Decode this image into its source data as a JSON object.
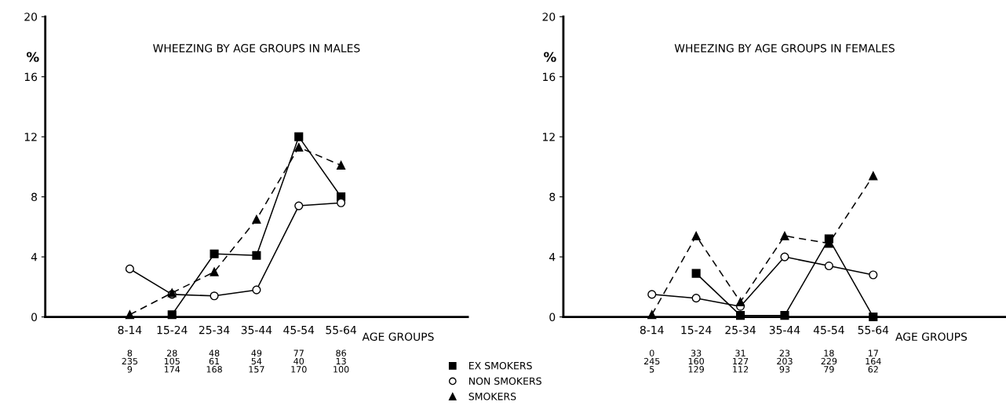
{
  "chart_data": [
    {
      "type": "line",
      "title": "WHEEZING BY AGE GROUPS IN MALES",
      "ylabel": "%",
      "xlabel": "AGE GROUPS",
      "categories": [
        "8-14",
        "15-24",
        "25-34",
        "35-44",
        "45-54",
        "55-64"
      ],
      "ylim": [
        0,
        20
      ],
      "yticks": [
        0,
        4,
        8,
        12,
        16,
        20
      ],
      "grid": false,
      "legend": "bottom right",
      "series": [
        {
          "name": "EX SMOKERS",
          "color": "#000000",
          "marker": "square",
          "line_style": "solid",
          "values": [
            null,
            0.15,
            4.2,
            4.1,
            12.0,
            8.0
          ]
        },
        {
          "name": "NON SMOKERS",
          "color": "#000000",
          "marker": "circle",
          "line_style": "solid",
          "values": [
            3.2,
            1.5,
            1.4,
            1.8,
            7.4,
            7.6
          ]
        },
        {
          "name": "SMOKERS",
          "color": "#000000",
          "marker": "triangle",
          "line_style": "dashed",
          "values": [
            0.15,
            1.6,
            3.0,
            6.5,
            11.3,
            10.1
          ]
        }
      ],
      "annotations": [
        "8\n235\n9",
        "28\n105\n174",
        "48\n61\n168",
        "49\n54\n157",
        "77\n40\n170",
        "86\n13\n100"
      ]
    },
    {
      "type": "line",
      "title": "WHEEZING BY AGE GROUPS IN FEMALES",
      "ylabel": "%",
      "xlabel": "AGE GROUPS",
      "categories": [
        "8-14",
        "15-24",
        "25-34",
        "35-44",
        "45-54",
        "55-64"
      ],
      "ylim": [
        0,
        20
      ],
      "yticks": [
        0,
        4,
        8,
        12,
        16,
        20
      ],
      "grid": false,
      "series": [
        {
          "color": "#000000",
          "marker": "square",
          "line_style": "solid",
          "values": [
            null,
            2.9,
            0.1,
            0.1,
            5.2,
            0.0
          ]
        },
        {
          "color": "#000000",
          "marker": "circle",
          "line_style": "solid",
          "values": [
            1.5,
            1.25,
            0.7,
            4.0,
            3.4,
            2.8
          ]
        },
        {
          "color": "#000000",
          "marker": "triangle",
          "line_style": "dashed",
          "values": [
            0.15,
            5.4,
            1.0,
            5.4,
            4.9,
            9.4
          ]
        }
      ],
      "annotations": [
        "0\n245\n5",
        "33\n160\n129",
        "31\n127\n112",
        "23\n203\n93",
        "18\n229\n79",
        "17\n164\n62"
      ]
    }
  ]
}
